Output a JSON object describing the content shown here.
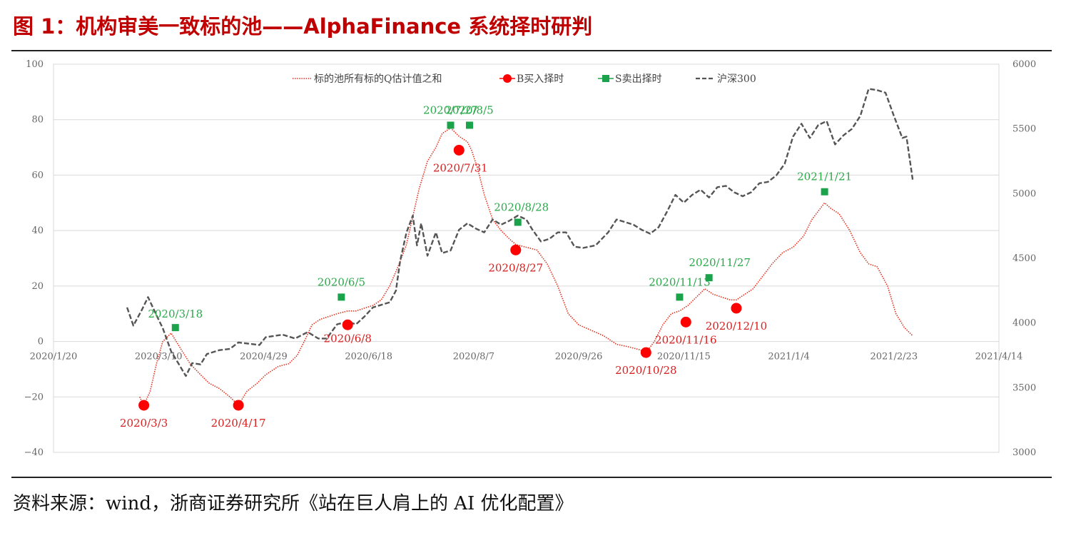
{
  "figure": {
    "title": "图 1：机构审美一致标的池——AlphaFinance 系统择时研判",
    "source": "资料来源：wind，浙商证券研究所《站在巨人肩上的 AI 优化配置》"
  },
  "colors": {
    "title": "#c00000",
    "q_line": "#e0301e",
    "buy": "#ff0000",
    "sell": "#1aa34a",
    "hs300": "#555555",
    "buy_label": "#d62020",
    "sell_label": "#2aa84a",
    "grid": "#d9d9d9"
  },
  "chart_data": {
    "type": "line",
    "x_ticks": [
      "2020/1/20",
      "2020/3/10",
      "2020/4/29",
      "2020/6/18",
      "2020/8/7",
      "2020/9/26",
      "2020/11/15",
      "2021/1/4",
      "2021/2/23",
      "2021/4/14"
    ],
    "y_left": {
      "ticks": [
        100,
        80,
        60,
        40,
        20,
        0,
        -20,
        -40
      ],
      "range": [
        -40,
        100
      ]
    },
    "y_right": {
      "ticks": [
        6000,
        5500,
        5000,
        4500,
        4000,
        3500,
        3000
      ],
      "range": [
        3000,
        6000
      ]
    },
    "legend": [
      "标的池所有标的Q估计值之和",
      "B买入择时",
      "S卖出择时",
      "沪深300"
    ],
    "legend_position": "top-center",
    "series": [
      {
        "name": "标的池所有标的Q估计值之和",
        "axis": "left",
        "style": "dotted",
        "points": [
          [
            "2020/3/1",
            -20
          ],
          [
            "2020/3/3",
            -23
          ],
          [
            "2020/3/6",
            -18
          ],
          [
            "2020/3/9",
            -8
          ],
          [
            "2020/3/12",
            0
          ],
          [
            "2020/3/16",
            3
          ],
          [
            "2020/3/20",
            -2
          ],
          [
            "2020/3/25",
            -8
          ],
          [
            "2020/3/30",
            -12
          ],
          [
            "2020/4/3",
            -15
          ],
          [
            "2020/4/8",
            -17
          ],
          [
            "2020/4/13",
            -20
          ],
          [
            "2020/4/17",
            -23
          ],
          [
            "2020/4/21",
            -18
          ],
          [
            "2020/4/26",
            -15
          ],
          [
            "2020/4/30",
            -12
          ],
          [
            "2020/5/6",
            -9
          ],
          [
            "2020/5/11",
            -8
          ],
          [
            "2020/5/15",
            -5
          ],
          [
            "2020/5/19",
            1
          ],
          [
            "2020/5/22",
            6
          ],
          [
            "2020/5/26",
            8
          ],
          [
            "2020/5/30",
            9
          ],
          [
            "2020/6/3",
            10
          ],
          [
            "2020/6/8",
            11
          ],
          [
            "2020/6/12",
            11
          ],
          [
            "2020/6/16",
            12
          ],
          [
            "2020/6/20",
            13
          ],
          [
            "2020/6/24",
            15
          ],
          [
            "2020/6/28",
            20
          ],
          [
            "2020/7/2",
            27
          ],
          [
            "2020/7/6",
            35
          ],
          [
            "2020/7/9",
            45
          ],
          [
            "2020/7/12",
            55
          ],
          [
            "2020/7/16",
            65
          ],
          [
            "2020/7/20",
            70
          ],
          [
            "2020/7/23",
            75
          ],
          [
            "2020/7/27",
            77
          ],
          [
            "2020/7/31",
            74
          ],
          [
            "2020/8/4",
            72
          ],
          [
            "2020/8/6",
            69
          ],
          [
            "2020/8/9",
            62
          ],
          [
            "2020/8/12",
            53
          ],
          [
            "2020/8/16",
            44
          ],
          [
            "2020/8/20",
            40
          ],
          [
            "2020/8/24",
            37
          ],
          [
            "2020/8/27",
            35
          ],
          [
            "2020/9/1",
            34
          ],
          [
            "2020/9/6",
            33
          ],
          [
            "2020/9/11",
            28
          ],
          [
            "2020/9/16",
            20
          ],
          [
            "2020/9/21",
            10
          ],
          [
            "2020/9/26",
            6
          ],
          [
            "2020/10/2",
            4
          ],
          [
            "2020/10/8",
            2
          ],
          [
            "2020/10/14",
            -1
          ],
          [
            "2020/10/20",
            -2
          ],
          [
            "2020/10/25",
            -3
          ],
          [
            "2020/10/28",
            -4
          ],
          [
            "2020/11/1",
            0
          ],
          [
            "2020/11/5",
            6
          ],
          [
            "2020/11/9",
            10
          ],
          [
            "2020/11/13",
            11
          ],
          [
            "2020/11/17",
            13
          ],
          [
            "2020/11/21",
            16
          ],
          [
            "2020/11/25",
            19
          ],
          [
            "2020/11/29",
            17
          ],
          [
            "2020/12/3",
            16
          ],
          [
            "2020/12/7",
            15
          ],
          [
            "2020/12/10",
            15
          ],
          [
            "2020/12/14",
            17
          ],
          [
            "2020/12/18",
            19
          ],
          [
            "2020/12/22",
            23
          ],
          [
            "2020/12/27",
            28
          ],
          [
            "2021/1/1",
            32
          ],
          [
            "2021/1/6",
            34
          ],
          [
            "2021/1/11",
            38
          ],
          [
            "2021/1/15",
            44
          ],
          [
            "2021/1/19",
            48
          ],
          [
            "2021/1/21",
            50
          ],
          [
            "2021/1/24",
            48
          ],
          [
            "2021/1/28",
            46
          ],
          [
            "2021/2/2",
            40
          ],
          [
            "2021/2/7",
            32
          ],
          [
            "2021/2/11",
            28
          ],
          [
            "2021/2/15",
            27
          ],
          [
            "2021/2/20",
            20
          ],
          [
            "2021/2/24",
            10
          ],
          [
            "2021/2/28",
            5
          ],
          [
            "2021/3/4",
            2
          ]
        ]
      },
      {
        "name": "沪深300",
        "axis": "right",
        "style": "dashed",
        "points": [
          [
            "2020/2/24",
            4120
          ],
          [
            "2020/2/27",
            3980
          ],
          [
            "2020/3/2",
            4100
          ],
          [
            "2020/3/5",
            4200
          ],
          [
            "2020/3/9",
            4060
          ],
          [
            "2020/3/12",
            3960
          ],
          [
            "2020/3/16",
            3780
          ],
          [
            "2020/3/19",
            3700
          ],
          [
            "2020/3/23",
            3590
          ],
          [
            "2020/3/26",
            3690
          ],
          [
            "2020/3/30",
            3680
          ],
          [
            "2020/4/2",
            3760
          ],
          [
            "2020/4/8",
            3790
          ],
          [
            "2020/4/13",
            3800
          ],
          [
            "2020/4/17",
            3850
          ],
          [
            "2020/4/22",
            3840
          ],
          [
            "2020/4/27",
            3830
          ],
          [
            "2020/4/30",
            3890
          ],
          [
            "2020/5/8",
            3910
          ],
          [
            "2020/5/14",
            3880
          ],
          [
            "2020/5/20",
            3930
          ],
          [
            "2020/5/25",
            3880
          ],
          [
            "2020/5/29",
            3880
          ],
          [
            "2020/6/3",
            3990
          ],
          [
            "2020/6/8",
            4010
          ],
          [
            "2020/6/12",
            3990
          ],
          [
            "2020/6/16",
            4050
          ],
          [
            "2020/6/20",
            4120
          ],
          [
            "2020/6/24",
            4140
          ],
          [
            "2020/6/28",
            4160
          ],
          [
            "2020/7/1",
            4250
          ],
          [
            "2020/7/3",
            4480
          ],
          [
            "2020/7/6",
            4700
          ],
          [
            "2020/7/9",
            4830
          ],
          [
            "2020/7/11",
            4600
          ],
          [
            "2020/7/13",
            4770
          ],
          [
            "2020/7/16",
            4520
          ],
          [
            "2020/7/20",
            4700
          ],
          [
            "2020/7/23",
            4540
          ],
          [
            "2020/7/27",
            4560
          ],
          [
            "2020/7/31",
            4720
          ],
          [
            "2020/8/4",
            4770
          ],
          [
            "2020/8/8",
            4730
          ],
          [
            "2020/8/12",
            4700
          ],
          [
            "2020/8/16",
            4800
          ],
          [
            "2020/8/20",
            4760
          ],
          [
            "2020/8/24",
            4790
          ],
          [
            "2020/8/28",
            4830
          ],
          [
            "2020/9/1",
            4800
          ],
          [
            "2020/9/4",
            4720
          ],
          [
            "2020/9/8",
            4630
          ],
          [
            "2020/9/12",
            4650
          ],
          [
            "2020/9/16",
            4700
          ],
          [
            "2020/9/20",
            4700
          ],
          [
            "2020/9/24",
            4590
          ],
          [
            "2020/9/28",
            4580
          ],
          [
            "2020/10/4",
            4600
          ],
          [
            "2020/10/10",
            4700
          ],
          [
            "2020/10/14",
            4800
          ],
          [
            "2020/10/18",
            4780
          ],
          [
            "2020/10/22",
            4760
          ],
          [
            "2020/10/26",
            4720
          ],
          [
            "2020/10/30",
            4690
          ],
          [
            "2020/11/3",
            4740
          ],
          [
            "2020/11/7",
            4860
          ],
          [
            "2020/11/11",
            4990
          ],
          [
            "2020/11/15",
            4930
          ],
          [
            "2020/11/19",
            4990
          ],
          [
            "2020/11/23",
            5030
          ],
          [
            "2020/11/27",
            4970
          ],
          [
            "2020/12/1",
            5050
          ],
          [
            "2020/12/5",
            5060
          ],
          [
            "2020/12/9",
            5010
          ],
          [
            "2020/12/13",
            4980
          ],
          [
            "2020/12/17",
            5010
          ],
          [
            "2020/12/21",
            5080
          ],
          [
            "2020/12/25",
            5090
          ],
          [
            "2020/12/29",
            5140
          ],
          [
            "2021/1/2",
            5230
          ],
          [
            "2021/1/6",
            5440
          ],
          [
            "2021/1/10",
            5540
          ],
          [
            "2021/1/14",
            5430
          ],
          [
            "2021/1/18",
            5530
          ],
          [
            "2021/1/22",
            5560
          ],
          [
            "2021/1/26",
            5380
          ],
          [
            "2021/1/30",
            5450
          ],
          [
            "2021/2/3",
            5500
          ],
          [
            "2021/2/7",
            5600
          ],
          [
            "2021/2/11",
            5810
          ],
          [
            "2021/2/15",
            5800
          ],
          [
            "2021/2/19",
            5780
          ],
          [
            "2021/2/23",
            5600
          ],
          [
            "2021/2/27",
            5430
          ],
          [
            "2021/3/1",
            5440
          ],
          [
            "2021/3/4",
            5100
          ]
        ]
      }
    ],
    "buy_points": [
      {
        "date": "2020/3/3",
        "value": -23,
        "label": "2020/3/3"
      },
      {
        "date": "2020/4/17",
        "value": -23,
        "label": "2020/4/17"
      },
      {
        "date": "2020/6/8",
        "value": 6,
        "label": "2020/6/8"
      },
      {
        "date": "2020/7/31",
        "value": 69,
        "label": "2020/7/31"
      },
      {
        "date": "2020/8/27",
        "value": 33,
        "label": "2020/8/27"
      },
      {
        "date": "2020/10/28",
        "value": -4,
        "label": "2020/10/28"
      },
      {
        "date": "2020/11/16",
        "value": 7,
        "label": "2020/11/16"
      },
      {
        "date": "2020/12/10",
        "value": 12,
        "label": "2020/12/10"
      }
    ],
    "sell_points": [
      {
        "date": "2020/3/18",
        "value": 5,
        "label": "2020/3/18"
      },
      {
        "date": "2020/6/5",
        "value": 16,
        "label": "2020/6/5"
      },
      {
        "date": "2020/7/27",
        "value": 78,
        "label": "2020/7/27"
      },
      {
        "date": "2020/8/5",
        "value": 78,
        "label": "2020/8/5"
      },
      {
        "date": "2020/8/28",
        "value": 43,
        "label": "2020/8/28"
      },
      {
        "date": "2020/11/13",
        "value": 16,
        "label": "2020/11/13"
      },
      {
        "date": "2020/11/27",
        "value": 23,
        "label": "2020/11/27"
      },
      {
        "date": "2021/1/21",
        "value": 54,
        "label": "2021/1/21"
      }
    ]
  }
}
